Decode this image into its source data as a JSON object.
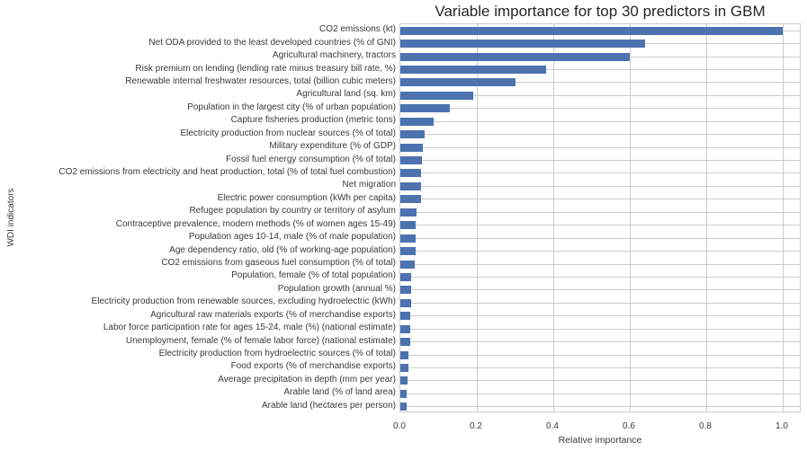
{
  "chart_data": {
    "type": "bar",
    "orientation": "horizontal",
    "title": "Variable importance for top 30 predictors in GBM",
    "xlabel": "Relative importance",
    "ylabel": "WDI indicators",
    "xlim": [
      0,
      1.05
    ],
    "grid": true,
    "legend": "none",
    "bar_color": "#4C72B0",
    "grid_color": "#cccccc",
    "x_ticks": [
      "0.0",
      "0.2",
      "0.4",
      "0.6",
      "0.8",
      "1.0"
    ],
    "x_tick_values": [
      0,
      0.2,
      0.4,
      0.6,
      0.8,
      1.0
    ],
    "categories": [
      "CO2 emissions (kt)",
      "Net ODA provided to the least developed countries (% of GNI)",
      "Agricultural machinery, tractors",
      "Risk premium on lending (lending rate minus treasury bill rate, %)",
      "Renewable internal freshwater resources, total (billion cubic meters)",
      "Agricultural land (sq. km)",
      "Population in the largest city (% of urban population)",
      "Capture fisheries production (metric tons)",
      "Electricity production from nuclear sources (% of total)",
      "Military expenditure (% of GDP)",
      "Fossil fuel energy consumption (% of total)",
      "CO2 emissions from electricity and heat production, total (% of total fuel combustion)",
      "Net migration",
      "Electric power consumption (kWh per capita)",
      "Refugee population by country or territory of asylum",
      "Contraceptive prevalence, modern methods (% of women ages 15-49)",
      "Population ages 10-14, male (% of male population)",
      "Age dependency ratio, old (% of working-age population)",
      "CO2 emissions from gaseous fuel consumption (% of total)",
      "Population, female (% of total population)",
      "Population growth (annual %)",
      "Electricity production from renewable sources, excluding hydroelectric (kWh)",
      "Agricultural raw materials exports (% of merchandise exports)",
      "Labor force participation rate for ages 15-24, male (%) (national estimate)",
      "Unemployment, female (% of female labor force) (national estimate)",
      "Electricity production from hydroelectric sources (% of total)",
      "Food exports (% of merchandise exports)",
      "Average precipitation in depth (mm per year)",
      "Arable land (% of land area)",
      "Arable land (hectares per person)"
    ],
    "values": [
      1.0,
      0.64,
      0.6,
      0.38,
      0.3,
      0.19,
      0.13,
      0.086,
      0.064,
      0.059,
      0.057,
      0.055,
      0.054,
      0.053,
      0.042,
      0.041,
      0.04,
      0.04,
      0.037,
      0.029,
      0.029,
      0.028,
      0.027,
      0.026,
      0.025,
      0.022,
      0.021,
      0.019,
      0.017,
      0.016
    ]
  }
}
